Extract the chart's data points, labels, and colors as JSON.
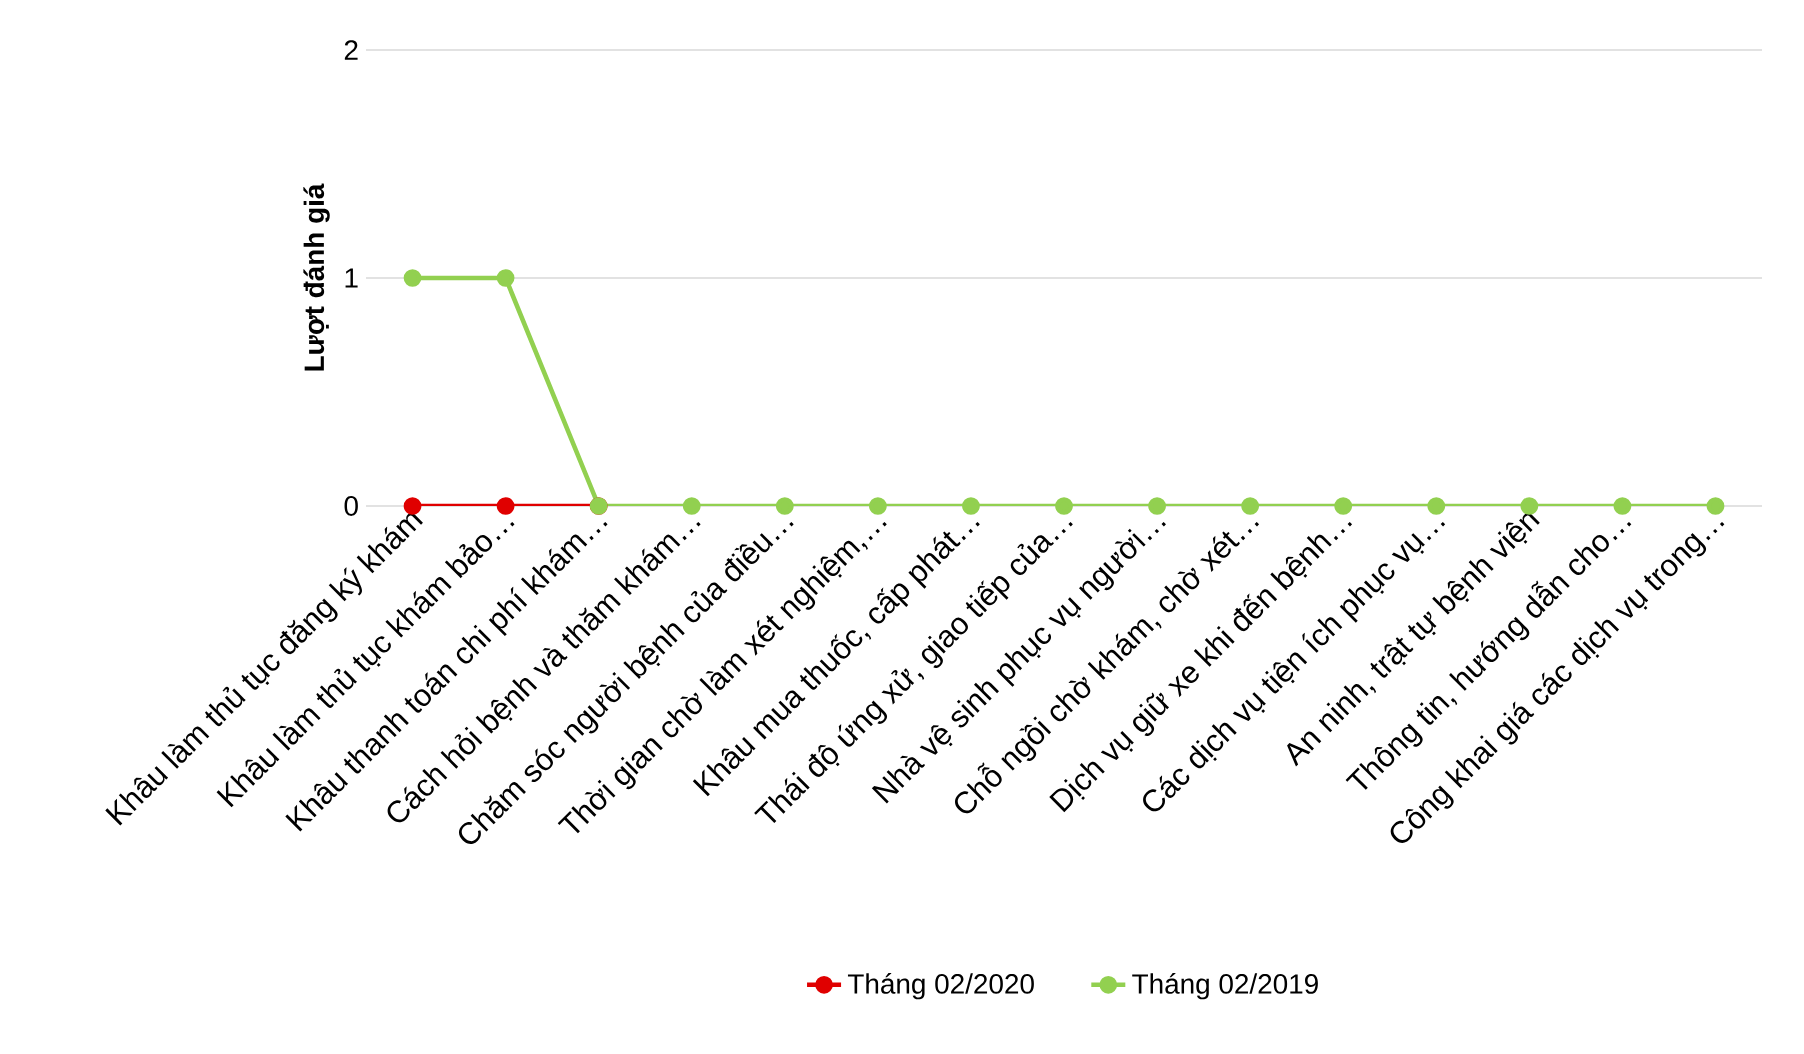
{
  "chart_data": {
    "type": "line",
    "ylabel": "Lượt đánh giá",
    "categories": [
      "Khâu làm thủ tục đăng ký khám",
      "Khâu làm thủ tục khám bảo…",
      "Khâu thanh toán chi phí khám…",
      "Cách hỏi bệnh và thăm khám…",
      "Chăm sóc người bệnh của điều…",
      "Thời gian chờ làm xét nghiệm,…",
      "Khâu mua thuốc, cấp phát…",
      "Thái độ ứng xử, giao tiếp của…",
      "Nhà vệ sinh phục vụ người…",
      "Chỗ ngồi chờ khám, chờ xét…",
      "Dịch vụ giữ xe khi đến bệnh…",
      "Các dịch vụ tiện ích phục vụ…",
      "An ninh, trật tự bệnh viện",
      "Thông tin, hướng dẫn cho…",
      "Công khai giá các dịch vụ trong…"
    ],
    "series": [
      {
        "name": "Tháng 02/2020",
        "color": "#e00000",
        "values": [
          0,
          0,
          0,
          null,
          null,
          null,
          null,
          null,
          null,
          null,
          null,
          null,
          null,
          null,
          null
        ]
      },
      {
        "name": "Tháng 02/2019",
        "color": "#92d050",
        "values": [
          1,
          1,
          0,
          0,
          0,
          0,
          0,
          0,
          0,
          0,
          0,
          0,
          0,
          0,
          0
        ]
      }
    ],
    "ylim": [
      0,
      2
    ],
    "yticks": [
      0,
      1,
      2
    ],
    "grid": "y",
    "legend": "bottom",
    "marker": "circle",
    "line_style": "solid"
  }
}
